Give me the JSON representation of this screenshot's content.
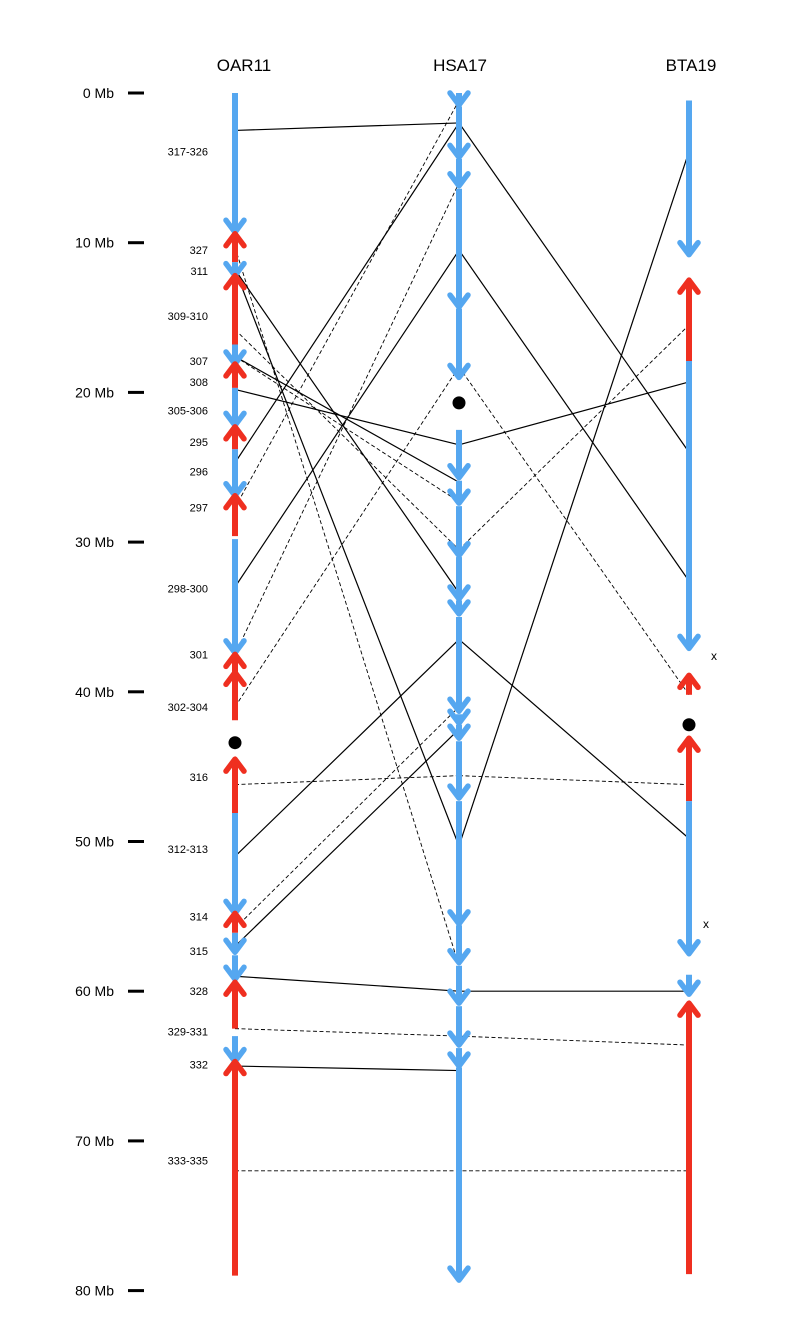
{
  "colors": {
    "forward": "#55a7f0",
    "reverse": "#ef2f20",
    "line": "#000000"
  },
  "chromosomes": [
    {
      "id": "oar",
      "label": "OAR11"
    },
    {
      "id": "hsa",
      "label": "HSA17"
    },
    {
      "id": "bta",
      "label": "BTA19"
    }
  ],
  "scale": [
    {
      "mb": 0,
      "label": "0 Mb"
    },
    {
      "mb": 10,
      "label": "10 Mb"
    },
    {
      "mb": 20,
      "label": "20 Mb"
    },
    {
      "mb": 30,
      "label": "30 Mb"
    },
    {
      "mb": 40,
      "label": "40 Mb"
    },
    {
      "mb": 50,
      "label": "50 Mb"
    },
    {
      "mb": 60,
      "label": "60 Mb"
    },
    {
      "mb": 70,
      "label": "70 Mb"
    },
    {
      "mb": 80,
      "label": "80 Mb"
    }
  ],
  "markers": [
    {
      "label": "317-326",
      "mb": 3.9
    },
    {
      "label": "327",
      "mb": 10.5
    },
    {
      "label": "311",
      "mb": 11.9
    },
    {
      "label": "309-310",
      "mb": 14.9
    },
    {
      "label": "307",
      "mb": 17.9
    },
    {
      "label": "308",
      "mb": 19.3
    },
    {
      "label": "305-306",
      "mb": 21.2
    },
    {
      "label": "295",
      "mb": 23.3
    },
    {
      "label": "296",
      "mb": 25.3
    },
    {
      "label": "297",
      "mb": 27.7
    },
    {
      "label": "298-300",
      "mb": 33.1
    },
    {
      "label": "301",
      "mb": 37.5
    },
    {
      "label": "302-304",
      "mb": 41.0
    },
    {
      "label": "316",
      "mb": 45.7
    },
    {
      "label": "312-313",
      "mb": 50.5
    },
    {
      "label": "314",
      "mb": 55.0
    },
    {
      "label": "315",
      "mb": 57.3
    },
    {
      "label": "328",
      "mb": 60.0
    },
    {
      "label": "329-331",
      "mb": 62.7
    },
    {
      "label": "332",
      "mb": 64.9
    },
    {
      "label": "333-335",
      "mb": 71.3
    }
  ],
  "segments": {
    "oar": [
      {
        "from": 0.0,
        "to": 9.3,
        "dir": "f"
      },
      {
        "from": 9.4,
        "to": 11.3,
        "dir": "r"
      },
      {
        "from": 11.3,
        "to": 12.2,
        "dir": "f"
      },
      {
        "from": 12.2,
        "to": 16.8,
        "dir": "r"
      },
      {
        "from": 16.8,
        "to": 18.1,
        "dir": "f"
      },
      {
        "from": 18.1,
        "to": 19.7,
        "dir": "r"
      },
      {
        "from": 19.7,
        "to": 22.2,
        "dir": "f"
      },
      {
        "from": 22.3,
        "to": 23.8,
        "dir": "r"
      },
      {
        "from": 23.8,
        "to": 26.9,
        "dir": "f"
      },
      {
        "from": 26.9,
        "to": 29.6,
        "dir": "r"
      },
      {
        "from": 29.8,
        "to": 37.4,
        "dir": "f"
      },
      {
        "from": 37.5,
        "to": 38.7,
        "dir": "r"
      },
      {
        "from": 38.7,
        "to": 41.9,
        "dir": "r"
      },
      {
        "from": 44.5,
        "to": 48.1,
        "dir": "r"
      },
      {
        "from": 48.1,
        "to": 54.8,
        "dir": "f"
      },
      {
        "from": 54.8,
        "to": 56.1,
        "dir": "r"
      },
      {
        "from": 56.1,
        "to": 57.4,
        "dir": "f"
      },
      {
        "from": 57.6,
        "to": 59.2,
        "dir": "f"
      },
      {
        "from": 59.4,
        "to": 62.5,
        "dir": "r"
      },
      {
        "from": 63.0,
        "to": 64.7,
        "dir": "f"
      },
      {
        "from": 64.7,
        "to": 79.0,
        "dir": "r"
      }
    ],
    "hsa": [
      {
        "from": 0.0,
        "to": 0.8,
        "dir": "f"
      },
      {
        "from": 0.9,
        "to": 4.3,
        "dir": "f"
      },
      {
        "from": 4.4,
        "to": 6.2,
        "dir": "f"
      },
      {
        "from": 6.4,
        "to": 14.3,
        "dir": "f"
      },
      {
        "from": 14.4,
        "to": 19.0,
        "dir": "f"
      },
      {
        "from": 22.5,
        "to": 25.7,
        "dir": "f"
      },
      {
        "from": 25.9,
        "to": 27.4,
        "dir": "f"
      },
      {
        "from": 27.6,
        "to": 30.9,
        "dir": "f"
      },
      {
        "from": 31.0,
        "to": 33.8,
        "dir": "f"
      },
      {
        "from": 33.9,
        "to": 34.8,
        "dir": "f"
      },
      {
        "from": 35.0,
        "to": 41.3,
        "dir": "f"
      },
      {
        "from": 41.5,
        "to": 42.1,
        "dir": "f"
      },
      {
        "from": 42.2,
        "to": 43.1,
        "dir": "f"
      },
      {
        "from": 43.3,
        "to": 47.1,
        "dir": "f"
      },
      {
        "from": 47.3,
        "to": 55.5,
        "dir": "f"
      },
      {
        "from": 55.6,
        "to": 58.1,
        "dir": "f"
      },
      {
        "from": 58.3,
        "to": 60.8,
        "dir": "f"
      },
      {
        "from": 61.0,
        "to": 63.6,
        "dir": "f"
      },
      {
        "from": 63.8,
        "to": 65.0,
        "dir": "f"
      },
      {
        "from": 65.1,
        "to": 79.3,
        "dir": "f"
      }
    ],
    "bta": [
      {
        "from": 0.5,
        "to": 10.8,
        "dir": "f"
      },
      {
        "from": 12.5,
        "to": 17.9,
        "dir": "r"
      },
      {
        "from": 17.9,
        "to": 37.1,
        "dir": "f"
      },
      {
        "from": 38.9,
        "to": 40.2,
        "dir": "r"
      },
      {
        "from": 43.1,
        "to": 47.3,
        "dir": "r"
      },
      {
        "from": 47.3,
        "to": 57.5,
        "dir": "f"
      },
      {
        "from": 58.9,
        "to": 60.2,
        "dir": "f"
      },
      {
        "from": 60.8,
        "to": 78.9,
        "dir": "r"
      }
    ]
  },
  "centromeres": [
    {
      "chr": "oar",
      "mb": 43.4
    },
    {
      "chr": "hsa",
      "mb": 20.7
    },
    {
      "chr": "bta",
      "mb": 42.2
    }
  ],
  "breakpoint_marks": [
    {
      "label": "x",
      "mb": 37.6
    },
    {
      "label": "x",
      "mb": 55.5
    }
  ],
  "links": [
    {
      "a": [
        "oar",
        2.5
      ],
      "b": [
        "hsa",
        2.0
      ],
      "style": "solid"
    },
    {
      "a": [
        "hsa",
        2.0
      ],
      "b": [
        "bta",
        24.0
      ],
      "style": "solid"
    },
    {
      "a": [
        "oar",
        11.8
      ],
      "b": [
        "hsa",
        50.3
      ],
      "style": "solid"
    },
    {
      "a": [
        "hsa",
        50.3
      ],
      "b": [
        "bta",
        3.9
      ],
      "style": "solid"
    },
    {
      "a": [
        "oar",
        11.8
      ],
      "b": [
        "hsa",
        33.4
      ],
      "style": "solid"
    },
    {
      "a": [
        "hsa",
        10.5
      ],
      "b": [
        "bta",
        32.6
      ],
      "style": "solid"
    },
    {
      "a": [
        "oar",
        17.6
      ],
      "b": [
        "hsa",
        26.0
      ],
      "style": "solid"
    },
    {
      "a": [
        "oar",
        19.8
      ],
      "b": [
        "hsa",
        23.5
      ],
      "style": "solid"
    },
    {
      "a": [
        "hsa",
        23.5
      ],
      "b": [
        "bta",
        19.3
      ],
      "style": "solid"
    },
    {
      "a": [
        "oar",
        24.7
      ],
      "b": [
        "hsa",
        2.0
      ],
      "style": "solid"
    },
    {
      "a": [
        "oar",
        33.0
      ],
      "b": [
        "hsa",
        10.5
      ],
      "style": "solid"
    },
    {
      "a": [
        "oar",
        51.0
      ],
      "b": [
        "hsa",
        36.5
      ],
      "style": "solid"
    },
    {
      "a": [
        "hsa",
        36.5
      ],
      "b": [
        "bta",
        49.8
      ],
      "style": "solid"
    },
    {
      "a": [
        "oar",
        57.0
      ],
      "b": [
        "hsa",
        42.5
      ],
      "style": "solid"
    },
    {
      "a": [
        "oar",
        59.0
      ],
      "b": [
        "hsa",
        60.0
      ],
      "style": "solid"
    },
    {
      "a": [
        "hsa",
        60.0
      ],
      "b": [
        "bta",
        60.0
      ],
      "style": "solid"
    },
    {
      "a": [
        "oar",
        65.0
      ],
      "b": [
        "hsa",
        65.3
      ],
      "style": "solid"
    },
    {
      "a": [
        "oar",
        10.3
      ],
      "b": [
        "hsa",
        58.3
      ],
      "style": "dashed"
    },
    {
      "a": [
        "oar",
        15.8
      ],
      "b": [
        "hsa",
        30.5
      ],
      "style": "dashed"
    },
    {
      "a": [
        "oar",
        17.6
      ],
      "b": [
        "hsa",
        27.3
      ],
      "style": "dashed"
    },
    {
      "a": [
        "oar",
        27.7
      ],
      "b": [
        "hsa",
        0.5
      ],
      "style": "dashed"
    },
    {
      "a": [
        "oar",
        37.5
      ],
      "b": [
        "hsa",
        6.0
      ],
      "style": "dashed"
    },
    {
      "a": [
        "oar",
        41.0
      ],
      "b": [
        "hsa",
        18.3
      ],
      "style": "dashed"
    },
    {
      "a": [
        "hsa",
        18.3
      ],
      "b": [
        "bta",
        40.2
      ],
      "style": "dashed"
    },
    {
      "a": [
        "hsa",
        30.5
      ],
      "b": [
        "bta",
        15.5
      ],
      "style": "dashed"
    },
    {
      "a": [
        "oar",
        46.2
      ],
      "b": [
        "hsa",
        45.6
      ],
      "style": "dashed"
    },
    {
      "a": [
        "hsa",
        45.6
      ],
      "b": [
        "bta",
        46.2
      ],
      "style": "dashed"
    },
    {
      "a": [
        "oar",
        55.8
      ],
      "b": [
        "hsa",
        41.0
      ],
      "style": "dashed"
    },
    {
      "a": [
        "oar",
        62.5
      ],
      "b": [
        "hsa",
        63.0
      ],
      "style": "dashed"
    },
    {
      "a": [
        "hsa",
        63.0
      ],
      "b": [
        "bta",
        63.6
      ],
      "style": "dashed"
    },
    {
      "a": [
        "oar",
        72.0
      ],
      "b": [
        "bta",
        72.0
      ],
      "style": "dashed"
    }
  ]
}
